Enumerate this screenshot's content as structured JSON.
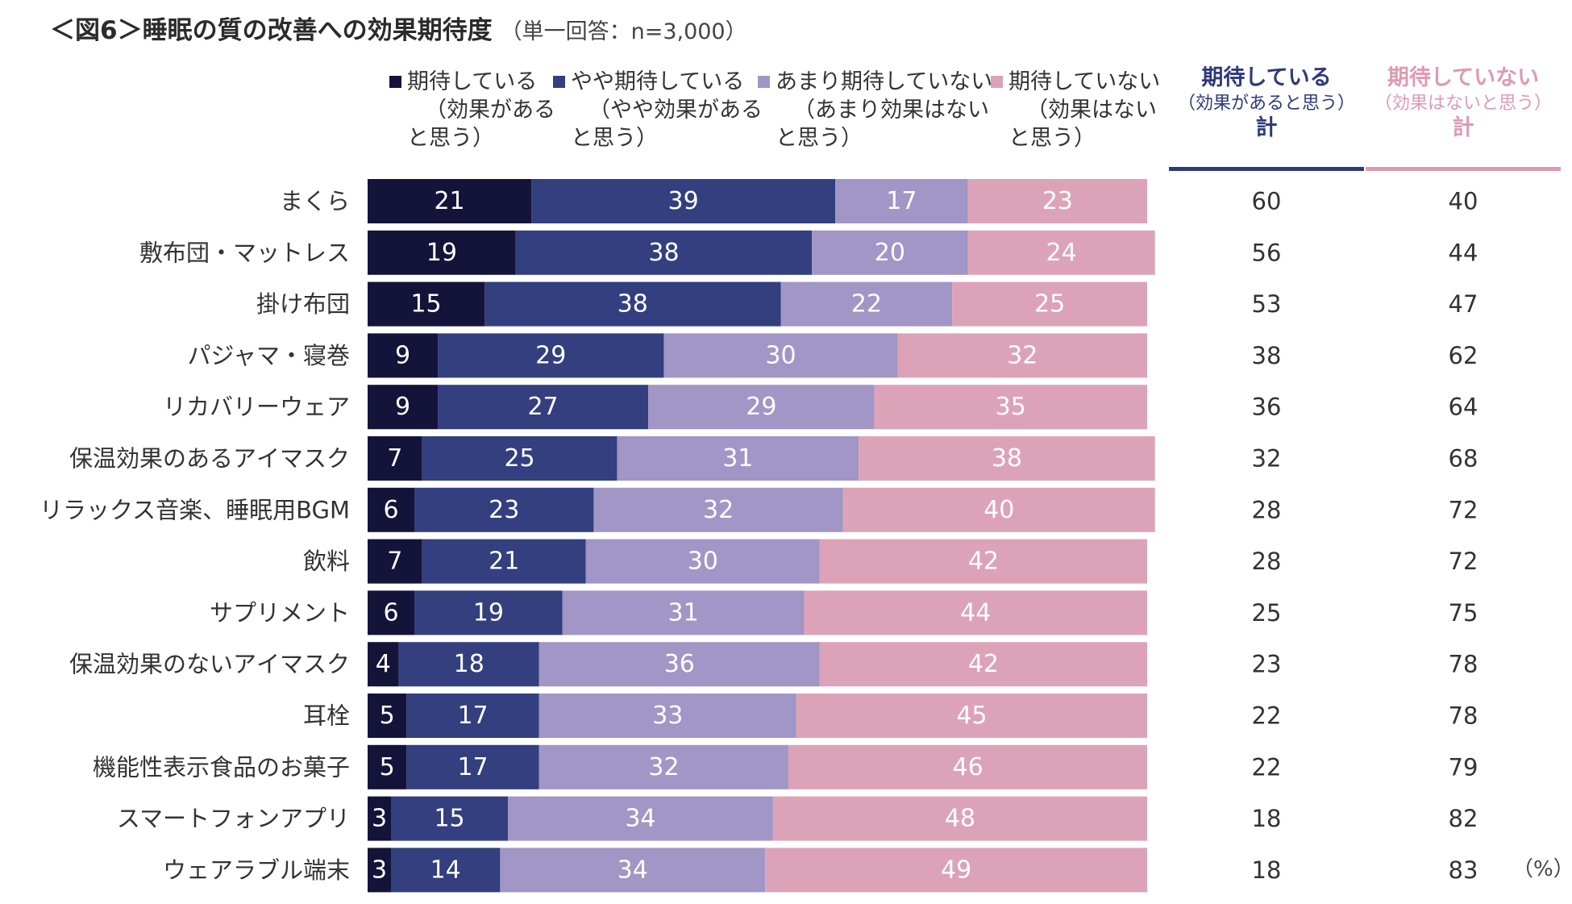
{
  "title": "＜図6＞睡眠の質の改善への効果期待度",
  "subtitle": "（単一回答：n=3,000）",
  "unit": "（%）",
  "colors": {
    "expect": "#14143a",
    "somewhat_expect": "#333f7e",
    "not_much": "#a196c6",
    "not_expect": "#dca3b8",
    "sum_expect": "#2e3a7c",
    "sum_not": "#dc9bb3"
  },
  "legend": [
    {
      "line1": "期待している",
      "line2": "（効果がある",
      "line3": "と思う）"
    },
    {
      "line1": "やや期待している",
      "line2": "（やや効果がある",
      "line3": "と思う）"
    },
    {
      "line1": "あまり期待していない",
      "line2": "（あまり効果はない",
      "line3": "と思う）"
    },
    {
      "line1": "期待していない",
      "line2": "（効果はない",
      "line3": "と思う）"
    }
  ],
  "summary_headers": [
    {
      "h1": "期待している",
      "h2": "（効果があると思う）",
      "h3": "計"
    },
    {
      "h1": "期待していない",
      "h2": "（効果はないと思う）",
      "h3": "計"
    }
  ],
  "chart_data": {
    "type": "bar",
    "orientation": "horizontal",
    "stacked": true,
    "percent": true,
    "xlim": [
      0,
      100
    ],
    "categories": [
      "まくら",
      "敷布団・マットレス",
      "掛け布団",
      "パジャマ・寝巻",
      "リカバリーウェア",
      "保温効果のあるアイマスク",
      "リラックス音楽、睡眠用BGM",
      "飲料",
      "サプリメント",
      "保温効果のないアイマスク",
      "耳栓",
      "機能性表示食品のお菓子",
      "スマートフォンアプリ",
      "ウェアラブル端末"
    ],
    "series": [
      {
        "name": "期待している（効果があると思う）",
        "values": [
          21,
          19,
          15,
          9,
          9,
          7,
          6,
          7,
          6,
          4,
          5,
          5,
          3,
          3
        ]
      },
      {
        "name": "やや期待している（やや効果があると思う）",
        "values": [
          39,
          38,
          38,
          29,
          27,
          25,
          23,
          21,
          19,
          18,
          17,
          17,
          15,
          14
        ]
      },
      {
        "name": "あまり期待していない（あまり効果はないと思う）",
        "values": [
          17,
          20,
          22,
          30,
          29,
          31,
          32,
          30,
          31,
          36,
          33,
          32,
          34,
          34
        ]
      },
      {
        "name": "期待していない（効果はないと思う）",
        "values": [
          23,
          24,
          25,
          32,
          35,
          38,
          40,
          42,
          44,
          42,
          45,
          46,
          48,
          49
        ]
      }
    ],
    "totals": {
      "expect": [
        60,
        56,
        53,
        38,
        36,
        32,
        28,
        28,
        25,
        23,
        22,
        22,
        18,
        18
      ],
      "not_expect": [
        40,
        44,
        47,
        62,
        64,
        68,
        72,
        72,
        75,
        78,
        78,
        79,
        82,
        83
      ]
    }
  }
}
